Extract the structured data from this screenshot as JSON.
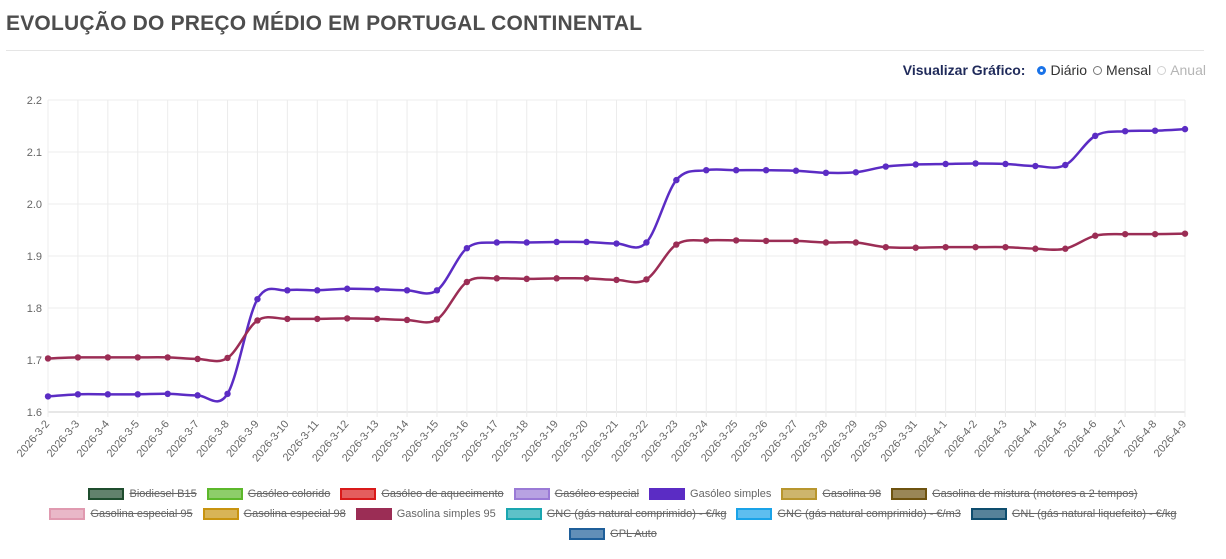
{
  "header": {
    "title": "EVOLUÇÃO DO PREÇO MÉDIO EM PORTUGAL CONTINENTAL"
  },
  "view_controls": {
    "label": "Visualizar Gráfico:",
    "options": [
      {
        "label": "Diário",
        "state": "selected"
      },
      {
        "label": "Mensal",
        "state": "normal"
      },
      {
        "label": "Anual",
        "state": "disabled"
      }
    ]
  },
  "chart_data": {
    "type": "line",
    "title": "",
    "xlabel": "",
    "ylabel": "",
    "ylim": [
      1.6,
      2.2
    ],
    "y_ticks": [
      "1.6",
      "1.7",
      "1.8",
      "1.9",
      "2.0",
      "2.1",
      "2.2"
    ],
    "grid": true,
    "legend_position": "bottom",
    "x": [
      "2026-3-2",
      "2026-3-3",
      "2026-3-4",
      "2026-3-5",
      "2026-3-6",
      "2026-3-7",
      "2026-3-8",
      "2026-3-9",
      "2026-3-10",
      "2026-3-11",
      "2026-3-12",
      "2026-3-13",
      "2026-3-14",
      "2026-3-15",
      "2026-3-16",
      "2026-3-17",
      "2026-3-18",
      "2026-3-19",
      "2026-3-20",
      "2026-3-21",
      "2026-3-22",
      "2026-3-23",
      "2026-3-24",
      "2026-3-25",
      "2026-3-26",
      "2026-3-27",
      "2026-3-28",
      "2026-3-29",
      "2026-3-30",
      "2026-3-31",
      "2026-4-1",
      "2026-4-2",
      "2026-4-3",
      "2026-4-4",
      "2026-4-5",
      "2026-4-6",
      "2026-4-7",
      "2026-4-8",
      "2026-4-9"
    ],
    "series": [
      {
        "name": "Gasóleo simples",
        "color": "#5b2cc4",
        "values": [
          1.63,
          1.634,
          1.634,
          1.634,
          1.635,
          1.632,
          1.635,
          1.817,
          1.834,
          1.834,
          1.837,
          1.836,
          1.834,
          1.834,
          1.915,
          1.926,
          1.926,
          1.927,
          1.927,
          1.924,
          1.926,
          2.046,
          2.065,
          2.065,
          2.065,
          2.064,
          2.06,
          2.061,
          2.072,
          2.076,
          2.077,
          2.078,
          2.077,
          2.073,
          2.075,
          2.131,
          2.14,
          2.141,
          2.144
        ]
      },
      {
        "name": "Gasolina simples 95",
        "color": "#9b2d55",
        "values": [
          1.703,
          1.705,
          1.705,
          1.705,
          1.705,
          1.702,
          1.704,
          1.776,
          1.779,
          1.779,
          1.78,
          1.779,
          1.777,
          1.778,
          1.85,
          1.857,
          1.856,
          1.857,
          1.857,
          1.854,
          1.855,
          1.922,
          1.93,
          1.93,
          1.929,
          1.929,
          1.926,
          1.926,
          1.917,
          1.916,
          1.917,
          1.917,
          1.917,
          1.914,
          1.914,
          1.939,
          1.942,
          1.942,
          1.943
        ]
      }
    ],
    "legend": [
      [
        {
          "label": "Biodiesel B15",
          "color": "#1f4d2e",
          "active": false
        },
        {
          "label": "Gasóleo colorido",
          "color": "#5cb82b",
          "active": false
        },
        {
          "label": "Gasóleo de aquecimento",
          "color": "#d91a1a",
          "active": false
        },
        {
          "label": "Gasóleo especial",
          "color": "#9a7ad6",
          "active": false
        },
        {
          "label": "Gasóleo simples",
          "color": "#5b2cc4",
          "active": true
        },
        {
          "label": "Gasolina 98",
          "color": "#b8962e",
          "active": false
        },
        {
          "label": "Gasolina de mistura (motores a 2 tempos)",
          "color": "#6e5310",
          "active": false
        }
      ],
      [
        {
          "label": "Gasolina especial 95",
          "color": "#e09ab0",
          "active": false
        },
        {
          "label": "Gasolina especial 98",
          "color": "#c89410",
          "active": false
        },
        {
          "label": "Gasolina simples 95",
          "color": "#9b2d55",
          "active": true
        },
        {
          "label": "GNC (gás natural comprimido) - €/kg",
          "color": "#1aa6b0",
          "active": false
        },
        {
          "label": "GNC (gás natural comprimido) - €/m3",
          "color": "#1aa3e8",
          "active": false
        },
        {
          "label": "GNL (gás natural liquefeito) - €/kg",
          "color": "#0e4d6e",
          "active": false
        }
      ],
      [
        {
          "label": "GPL Auto",
          "color": "#1f5f9a",
          "active": false
        }
      ]
    ]
  }
}
